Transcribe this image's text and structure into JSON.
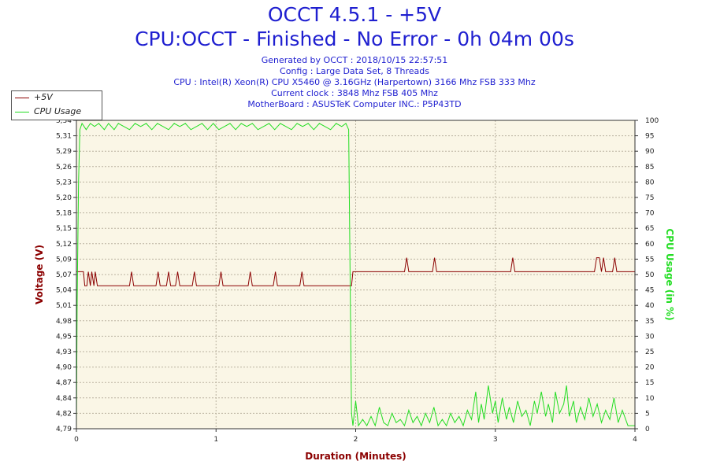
{
  "title": "OCCT 4.5.1 - +5V",
  "subtitle": "CPU:OCCT - Finished - No Error - 0h 04m 00s",
  "info_lines": [
    "Generated by OCCT : 2018/10/15 22:57:51",
    "Config : Large Data Set, 8 Threads",
    "CPU : Intel(R) Xeon(R) CPU X5460 @ 3.16GHz (Harpertown) 3166 Mhz FSB 333 Mhz",
    "Current clock : 3848 Mhz FSB 405 Mhz",
    "MotherBoard : ASUSTeK Computer INC.: P5P43TD"
  ],
  "colors": {
    "voltage": "#8b0000",
    "cpu": "#22dd22",
    "plot_bg": "#faf6e6",
    "grid": "#b9b2a0",
    "title": "#1f1fd0"
  },
  "chart_data": {
    "type": "line",
    "xlabel": "Duration (Minutes)",
    "ylabel_left": "Voltage (V)",
    "ylabel_right": "CPU Usage (in %)",
    "xlim": [
      0,
      4
    ],
    "x_ticks": [
      "0",
      "1",
      "2",
      "3",
      "4"
    ],
    "ylim_left": [
      4.79,
      5.34
    ],
    "y_ticks_left": [
      "4,79",
      "4,82",
      "4,84",
      "4,87",
      "4,90",
      "4,93",
      "4,95",
      "4,98",
      "5,01",
      "5,04",
      "5,07",
      "5,09",
      "5,12",
      "5,15",
      "5,18",
      "5,20",
      "5,23",
      "5,26",
      "5,29",
      "5,31",
      "5,34"
    ],
    "ylim_right": [
      0,
      100
    ],
    "y_ticks_right": [
      "0",
      "5",
      "10",
      "15",
      "20",
      "25",
      "30",
      "35",
      "40",
      "45",
      "50",
      "55",
      "60",
      "65",
      "70",
      "75",
      "80",
      "85",
      "90",
      "95",
      "100"
    ],
    "grid": true,
    "legend_position": "top-left",
    "series": [
      {
        "name": "+5V",
        "axis": "left",
        "points": [
          [
            0,
            5.07
          ],
          [
            0.05,
            5.07
          ],
          [
            0.06,
            5.045
          ],
          [
            0.075,
            5.045
          ],
          [
            0.085,
            5.07
          ],
          [
            0.1,
            5.045
          ],
          [
            0.11,
            5.07
          ],
          [
            0.125,
            5.045
          ],
          [
            0.135,
            5.07
          ],
          [
            0.15,
            5.045
          ],
          [
            0.38,
            5.045
          ],
          [
            0.395,
            5.07
          ],
          [
            0.41,
            5.045
          ],
          [
            0.57,
            5.045
          ],
          [
            0.585,
            5.07
          ],
          [
            0.6,
            5.045
          ],
          [
            0.645,
            5.045
          ],
          [
            0.66,
            5.07
          ],
          [
            0.675,
            5.045
          ],
          [
            0.71,
            5.045
          ],
          [
            0.725,
            5.07
          ],
          [
            0.74,
            5.045
          ],
          [
            0.83,
            5.045
          ],
          [
            0.845,
            5.07
          ],
          [
            0.86,
            5.045
          ],
          [
            1.02,
            5.045
          ],
          [
            1.035,
            5.07
          ],
          [
            1.05,
            5.045
          ],
          [
            1.23,
            5.045
          ],
          [
            1.245,
            5.07
          ],
          [
            1.26,
            5.045
          ],
          [
            1.41,
            5.045
          ],
          [
            1.425,
            5.07
          ],
          [
            1.44,
            5.045
          ],
          [
            1.6,
            5.045
          ],
          [
            1.615,
            5.07
          ],
          [
            1.63,
            5.045
          ],
          [
            1.96,
            5.045
          ],
          [
            1.97,
            5.045
          ],
          [
            1.98,
            5.07
          ],
          [
            2.35,
            5.07
          ],
          [
            2.365,
            5.095
          ],
          [
            2.38,
            5.07
          ],
          [
            2.55,
            5.07
          ],
          [
            2.565,
            5.095
          ],
          [
            2.58,
            5.07
          ],
          [
            3.11,
            5.07
          ],
          [
            3.125,
            5.095
          ],
          [
            3.14,
            5.07
          ],
          [
            3.71,
            5.07
          ],
          [
            3.725,
            5.095
          ],
          [
            3.745,
            5.095
          ],
          [
            3.76,
            5.07
          ],
          [
            3.775,
            5.095
          ],
          [
            3.79,
            5.07
          ],
          [
            3.84,
            5.07
          ],
          [
            3.855,
            5.095
          ],
          [
            3.87,
            5.07
          ],
          [
            4,
            5.07
          ]
        ]
      },
      {
        "name": "CPU Usage",
        "axis": "right",
        "points": [
          [
            0,
            0
          ],
          [
            0.005,
            40
          ],
          [
            0.015,
            80
          ],
          [
            0.025,
            97
          ],
          [
            0.04,
            99
          ],
          [
            0.07,
            97
          ],
          [
            0.1,
            99
          ],
          [
            0.13,
            98
          ],
          [
            0.16,
            99
          ],
          [
            0.2,
            97
          ],
          [
            0.23,
            99
          ],
          [
            0.27,
            97
          ],
          [
            0.3,
            99
          ],
          [
            0.34,
            98
          ],
          [
            0.38,
            97
          ],
          [
            0.42,
            99
          ],
          [
            0.46,
            98
          ],
          [
            0.5,
            99
          ],
          [
            0.54,
            97
          ],
          [
            0.58,
            99
          ],
          [
            0.62,
            98
          ],
          [
            0.66,
            97
          ],
          [
            0.7,
            99
          ],
          [
            0.74,
            98
          ],
          [
            0.78,
            99
          ],
          [
            0.82,
            97
          ],
          [
            0.86,
            98
          ],
          [
            0.9,
            99
          ],
          [
            0.94,
            97
          ],
          [
            0.98,
            99
          ],
          [
            1.02,
            97
          ],
          [
            1.06,
            98
          ],
          [
            1.1,
            99
          ],
          [
            1.14,
            97
          ],
          [
            1.18,
            99
          ],
          [
            1.22,
            98
          ],
          [
            1.26,
            99
          ],
          [
            1.3,
            97
          ],
          [
            1.34,
            98
          ],
          [
            1.38,
            99
          ],
          [
            1.42,
            97
          ],
          [
            1.46,
            99
          ],
          [
            1.5,
            98
          ],
          [
            1.54,
            97
          ],
          [
            1.58,
            99
          ],
          [
            1.62,
            98
          ],
          [
            1.66,
            99
          ],
          [
            1.7,
            97
          ],
          [
            1.74,
            99
          ],
          [
            1.78,
            98
          ],
          [
            1.82,
            97
          ],
          [
            1.86,
            99
          ],
          [
            1.9,
            98
          ],
          [
            1.93,
            99
          ],
          [
            1.95,
            97
          ],
          [
            1.96,
            50
          ],
          [
            1.97,
            5
          ],
          [
            1.98,
            1
          ],
          [
            2.0,
            9
          ],
          [
            2.02,
            1
          ],
          [
            2.05,
            3
          ],
          [
            2.08,
            1
          ],
          [
            2.11,
            4
          ],
          [
            2.14,
            1
          ],
          [
            2.17,
            7
          ],
          [
            2.2,
            2
          ],
          [
            2.23,
            1
          ],
          [
            2.26,
            5
          ],
          [
            2.29,
            2
          ],
          [
            2.32,
            3
          ],
          [
            2.35,
            1
          ],
          [
            2.38,
            6
          ],
          [
            2.41,
            2
          ],
          [
            2.44,
            4
          ],
          [
            2.47,
            1
          ],
          [
            2.5,
            5
          ],
          [
            2.53,
            2
          ],
          [
            2.56,
            7
          ],
          [
            2.59,
            1
          ],
          [
            2.62,
            3
          ],
          [
            2.65,
            1
          ],
          [
            2.68,
            5
          ],
          [
            2.71,
            2
          ],
          [
            2.74,
            4
          ],
          [
            2.77,
            1
          ],
          [
            2.8,
            6
          ],
          [
            2.83,
            3
          ],
          [
            2.86,
            12
          ],
          [
            2.88,
            2
          ],
          [
            2.9,
            8
          ],
          [
            2.92,
            3
          ],
          [
            2.95,
            14
          ],
          [
            2.98,
            5
          ],
          [
            3.0,
            9
          ],
          [
            3.02,
            2
          ],
          [
            3.05,
            10
          ],
          [
            3.08,
            3
          ],
          [
            3.1,
            7
          ],
          [
            3.13,
            2
          ],
          [
            3.16,
            9
          ],
          [
            3.19,
            4
          ],
          [
            3.22,
            6
          ],
          [
            3.25,
            1
          ],
          [
            3.28,
            9
          ],
          [
            3.3,
            5
          ],
          [
            3.33,
            12
          ],
          [
            3.36,
            4
          ],
          [
            3.38,
            8
          ],
          [
            3.41,
            2
          ],
          [
            3.43,
            12
          ],
          [
            3.46,
            5
          ],
          [
            3.49,
            8
          ],
          [
            3.51,
            14
          ],
          [
            3.53,
            4
          ],
          [
            3.56,
            9
          ],
          [
            3.58,
            2
          ],
          [
            3.61,
            7
          ],
          [
            3.64,
            3
          ],
          [
            3.67,
            10
          ],
          [
            3.7,
            4
          ],
          [
            3.73,
            8
          ],
          [
            3.76,
            2
          ],
          [
            3.79,
            6
          ],
          [
            3.82,
            3
          ],
          [
            3.85,
            10
          ],
          [
            3.88,
            2
          ],
          [
            3.91,
            6
          ],
          [
            3.95,
            1
          ],
          [
            4,
            1
          ]
        ]
      }
    ]
  }
}
